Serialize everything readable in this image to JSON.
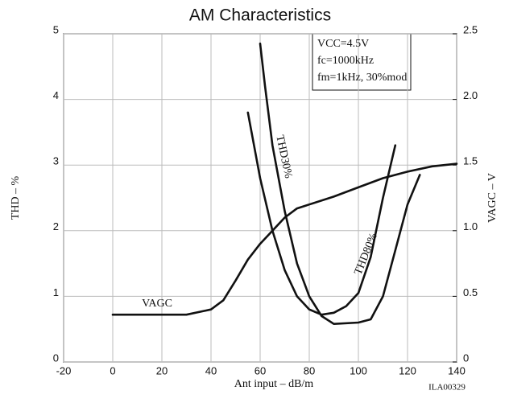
{
  "chart_data": {
    "type": "line",
    "title": "AM Characteristics",
    "x_label": "Ant input –  dB/m",
    "y_label": "THD – %",
    "y2_label": "VAGC – V",
    "code": "ILA00329",
    "annotations": [
      "VCC=4.5V",
      "fc=1000kHz",
      "fm=1kHz, 30%mod"
    ],
    "xlim": [
      -20,
      140
    ],
    "xticks": [
      -20,
      0,
      20,
      40,
      60,
      80,
      100,
      120,
      140
    ],
    "ylim": [
      0,
      5
    ],
    "yticks": [
      0,
      1,
      2,
      3,
      4,
      5
    ],
    "y2lim": [
      0,
      2.5
    ],
    "y2ticks": [
      0,
      0.5,
      {
        "value": 1,
        "label": "1.0"
      },
      1.5,
      {
        "value": 2,
        "label": "2.0"
      },
      2.5
    ],
    "grid": true,
    "series": [
      {
        "name": "VAGC",
        "color": "#111111",
        "axis": "y2",
        "x": [
          0,
          20,
          30,
          40,
          45,
          50,
          55,
          60,
          65,
          70,
          75,
          80,
          90,
          100,
          110,
          120,
          130,
          140
        ],
        "values": [
          0.36,
          0.36,
          0.36,
          0.4,
          0.47,
          0.62,
          0.78,
          0.9,
          1.0,
          1.1,
          1.17,
          1.2,
          1.26,
          1.33,
          1.4,
          1.45,
          1.49,
          1.51
        ]
      },
      {
        "name": "THD30%",
        "color": "#111111",
        "x": [
          60,
          62,
          65,
          70,
          75,
          80,
          85,
          90,
          100,
          105,
          110,
          115,
          120,
          125
        ],
        "values": [
          4.85,
          4.2,
          3.3,
          2.3,
          1.5,
          1.0,
          0.7,
          0.58,
          0.6,
          0.65,
          1.0,
          1.7,
          2.4,
          2.85
        ]
      },
      {
        "name": "THD80%",
        "color": "#111111",
        "x": [
          55,
          60,
          65,
          70,
          75,
          80,
          85,
          90,
          95,
          100,
          105,
          110,
          115
        ],
        "values": [
          3.8,
          2.8,
          2.0,
          1.4,
          1.0,
          0.8,
          0.72,
          0.75,
          0.85,
          1.05,
          1.6,
          2.5,
          3.3
        ]
      }
    ]
  }
}
